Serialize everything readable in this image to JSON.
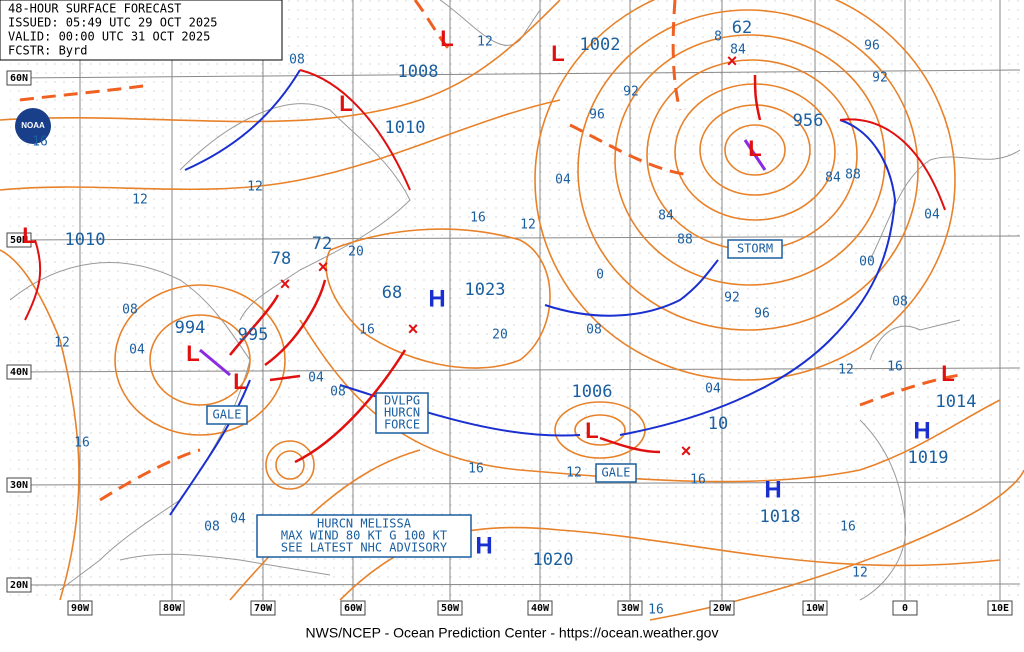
{
  "header": {
    "title": "48-HOUR SURFACE FORECAST",
    "issued": "ISSUED: 05:49 UTC 29 OCT 2025",
    "valid": "VALID:  00:00 UTC 31 OCT 2025",
    "forecaster": "FCSTR:  Byrd"
  },
  "logo": "NOAA",
  "latitudes": [
    "60N",
    "50N",
    "40N",
    "30N",
    "20N"
  ],
  "longitudes": [
    "90W",
    "80W",
    "70W",
    "60W",
    "50W",
    "40W",
    "30W",
    "20W",
    "10W",
    "0",
    "10E"
  ],
  "centers": [
    "1008",
    "1010",
    "1002",
    "62",
    "956",
    "1010",
    "994",
    "995",
    "78",
    "72",
    "68",
    "1023",
    "1006",
    "10",
    "1014",
    "1019",
    "1018",
    "1020"
  ],
  "highs": [
    "H",
    "H",
    "H",
    "H"
  ],
  "lows": [
    "L",
    "L",
    "L",
    "L",
    "L",
    "L",
    "L",
    "L",
    "L"
  ],
  "isobar_labels": [
    "12",
    "08",
    "16",
    "12",
    "12",
    "16",
    "12",
    "20",
    "16",
    "20",
    "08",
    "04",
    "12",
    "04",
    "08",
    "16",
    "16",
    "12",
    "16",
    "08",
    "04",
    "12",
    "16",
    "16",
    "16",
    "12",
    "08",
    "04",
    "08",
    "96",
    "92",
    "88",
    "84",
    "04",
    "96",
    "92",
    "96",
    "92",
    "88",
    "84",
    "00",
    "04",
    "8",
    "84",
    "0"
  ],
  "boxes": {
    "storm": "STORM",
    "gale_west": "GALE",
    "gale_east": "GALE",
    "developing": [
      "DVLPG",
      "HURCN",
      "FORCE"
    ],
    "melissa": [
      "HURCN MELISSA",
      "MAX WIND 80 KT G 100 KT",
      "SEE LATEST NHC ADVISORY"
    ]
  },
  "footer": "NWS/NCEP - Ocean Prediction Center - https://ocean.weather.gov"
}
